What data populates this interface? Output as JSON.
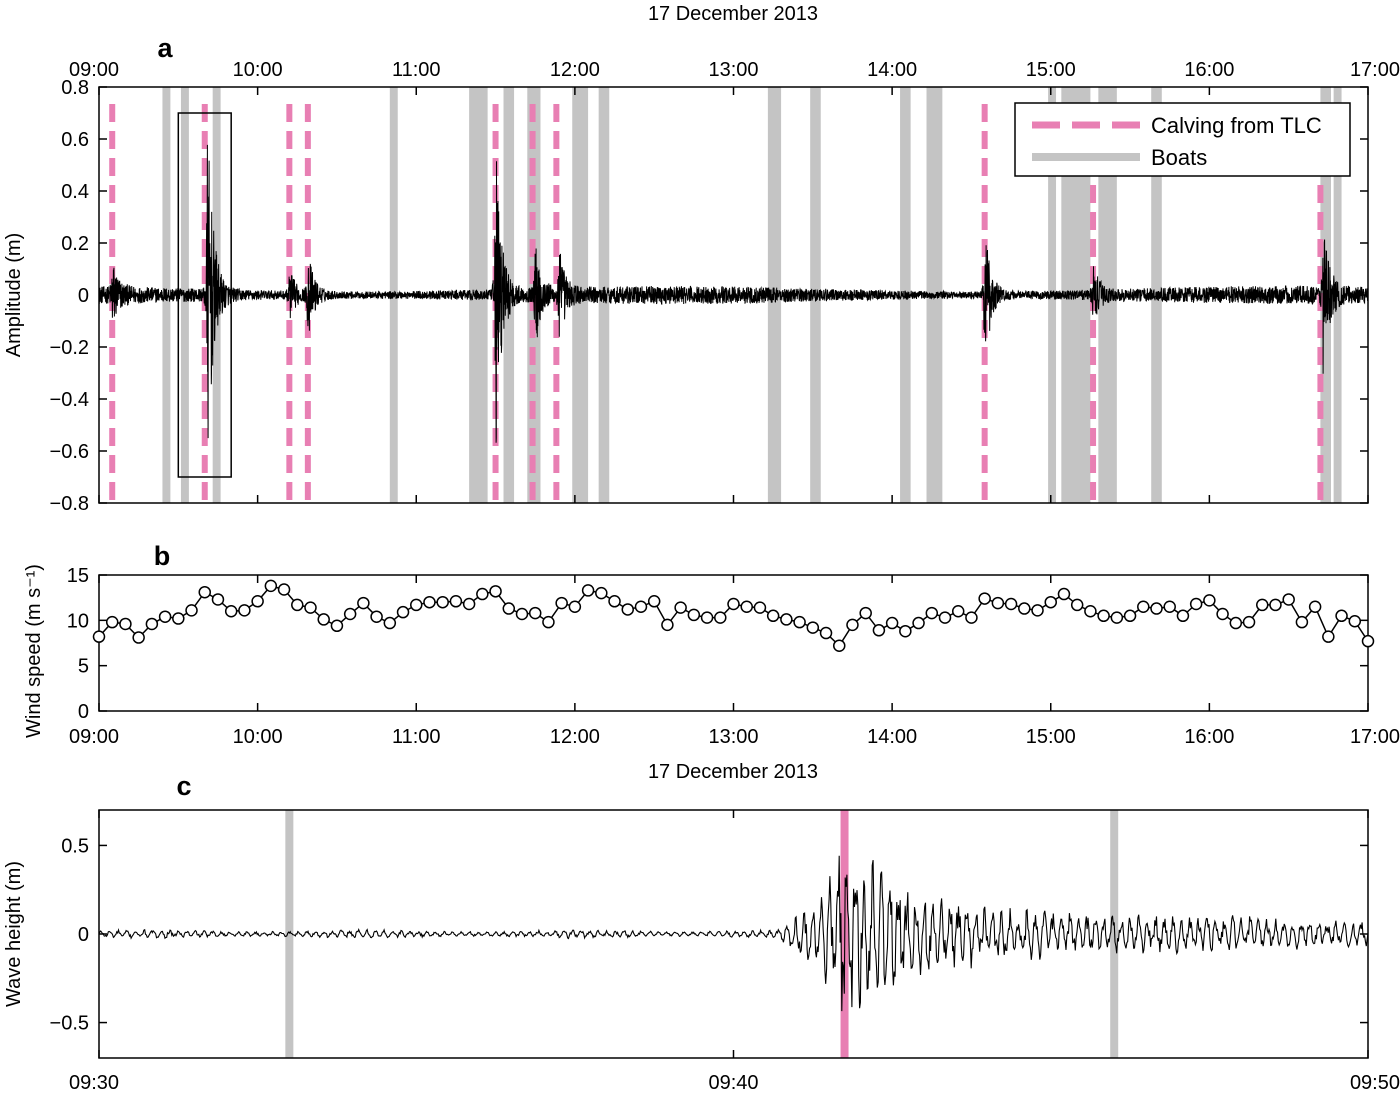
{
  "chart_data": [
    {
      "panel": "a",
      "type": "line",
      "date_label": "17 December 2013",
      "ylabel": "Amplitude (m)",
      "xlim": [
        "09:00",
        "17:00"
      ],
      "ylim": [
        -0.8,
        0.8
      ],
      "x_ticks": [
        "09:00",
        "10:00",
        "11:00",
        "12:00",
        "13:00",
        "14:00",
        "15:00",
        "16:00",
        "17:00"
      ],
      "y_ticks": [
        "0.8",
        "0.6",
        "0.4",
        "0.2",
        "0",
        "−0.2",
        "−0.4",
        "−0.6",
        "−0.8"
      ],
      "legend": {
        "position": "top-right",
        "entries": [
          "Calving from TLC",
          "Boats"
        ]
      },
      "calving_times": [
        "09:05",
        "09:40",
        "10:12",
        "10:19",
        "11:30",
        "11:44",
        "11:53",
        "14:35",
        "15:16",
        "16:42"
      ],
      "boat_intervals": [
        [
          "09:24",
          "09:27"
        ],
        [
          "09:31",
          "09:34"
        ],
        [
          "09:43",
          "09:46"
        ],
        [
          "10:50",
          "10:53"
        ],
        [
          "11:20",
          "11:27"
        ],
        [
          "11:33",
          "11:37"
        ],
        [
          "11:42",
          "11:47"
        ],
        [
          "11:59",
          "12:05"
        ],
        [
          "12:09",
          "12:13"
        ],
        [
          "13:13",
          "13:18"
        ],
        [
          "13:29",
          "13:33"
        ],
        [
          "14:03",
          "14:07"
        ],
        [
          "14:13",
          "14:19"
        ],
        [
          "14:59",
          "15:02"
        ],
        [
          "15:04",
          "15:15"
        ],
        [
          "15:18",
          "15:25"
        ],
        [
          "15:38",
          "15:42"
        ],
        [
          "16:42",
          "16:46"
        ],
        [
          "16:47",
          "16:50"
        ]
      ],
      "zoom_box": {
        "x": [
          "09:30",
          "09:50"
        ],
        "y": [
          -0.7,
          0.7
        ]
      },
      "bursts": [
        {
          "t": "09:05",
          "amp": 0.12
        },
        {
          "t": "09:41",
          "amp": 0.67
        },
        {
          "t": "10:12",
          "amp": 0.1
        },
        {
          "t": "10:19",
          "amp": 0.17
        },
        {
          "t": "11:30",
          "amp": 0.62
        },
        {
          "t": "11:45",
          "amp": 0.2
        },
        {
          "t": "11:54",
          "amp": 0.17
        },
        {
          "t": "14:35",
          "amp": 0.3
        },
        {
          "t": "15:16",
          "amp": 0.12
        },
        {
          "t": "16:43",
          "amp": 0.28
        }
      ],
      "baseline_noise": 0.035
    },
    {
      "panel": "b",
      "type": "line",
      "ylabel": "Wind speed (m s⁻¹)",
      "xlim": [
        "09:00",
        "17:00"
      ],
      "ylim": [
        0,
        15
      ],
      "x_ticks": [
        "09:00",
        "10:00",
        "11:00",
        "12:00",
        "13:00",
        "14:00",
        "15:00",
        "16:00",
        "17:00"
      ],
      "y_ticks": [
        "15",
        "10",
        "5",
        "0"
      ],
      "interval_minutes": 5,
      "values": [
        8.2,
        9.8,
        9.6,
        8.1,
        9.6,
        10.4,
        10.2,
        11.1,
        13.1,
        12.3,
        11.0,
        11.1,
        12.1,
        13.8,
        13.4,
        11.7,
        11.4,
        10.1,
        9.4,
        10.7,
        11.9,
        10.4,
        9.7,
        10.9,
        11.7,
        12.0,
        12.0,
        12.1,
        11.8,
        12.9,
        13.2,
        11.3,
        10.7,
        10.8,
        9.8,
        11.9,
        11.5,
        13.3,
        13.0,
        12.1,
        11.2,
        11.5,
        12.1,
        9.5,
        11.4,
        10.6,
        10.3,
        10.3,
        11.8,
        11.5,
        11.4,
        10.5,
        10.1,
        9.8,
        9.2,
        8.6,
        7.2,
        9.5,
        10.8,
        8.9,
        9.7,
        8.8,
        9.7,
        10.8,
        10.3,
        11.0,
        10.3,
        12.4,
        11.9,
        11.8,
        11.3,
        11.1,
        12.0,
        12.9,
        11.7,
        11.0,
        10.5,
        10.3,
        10.5,
        11.5,
        11.3,
        11.5,
        10.5,
        11.8,
        12.2,
        10.7,
        9.7,
        9.8,
        11.7,
        11.7,
        12.3,
        9.8,
        11.5,
        8.2,
        10.5,
        9.9,
        7.7
      ]
    },
    {
      "panel": "c",
      "type": "line",
      "date_label": "17 December 2013",
      "ylabel": "Wave height (m)",
      "xlim": [
        "09:30",
        "09:50"
      ],
      "ylim": [
        -0.7,
        0.7
      ],
      "x_ticks": [
        "09:30",
        "09:40",
        "09:50"
      ],
      "y_ticks": [
        "0.5",
        "0",
        "−0.5"
      ],
      "calving_times": [
        "09:41:45"
      ],
      "boat_times": [
        "09:33:00",
        "09:46:00"
      ],
      "event_start": "09:40:45",
      "event_peak": "09:41:45",
      "peak_amplitude": 0.6,
      "baseline_noise": 0.02
    }
  ],
  "legend_text": {
    "calving": "Calving from TLC",
    "boats": "Boats"
  },
  "colors": {
    "calving": "#e87fb3",
    "boats": "#c4c4c4",
    "signal": "#000000"
  }
}
